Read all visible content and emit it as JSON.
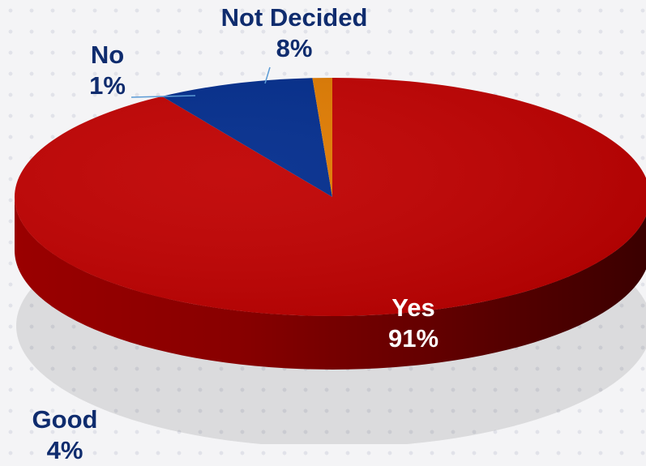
{
  "chart_data": {
    "type": "pie",
    "title": "",
    "slices": [
      {
        "label": "Yes",
        "value": 91,
        "display": "91%",
        "color": "#c00000"
      },
      {
        "label": "Not Decided",
        "value": 8,
        "display": "8%",
        "color": "#002b8c"
      },
      {
        "label": "No",
        "value": 1,
        "display": "1%",
        "color": "#e07b00"
      }
    ],
    "extra_labels": [
      {
        "label": "Good",
        "display": "4%"
      }
    ],
    "legend": "none",
    "style": "3d"
  }
}
